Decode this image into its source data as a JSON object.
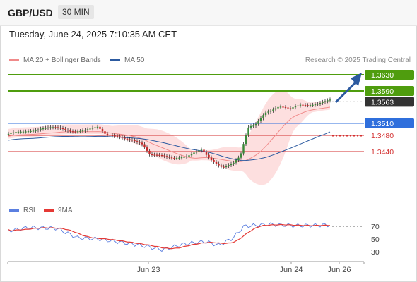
{
  "header": {
    "symbol": "GBP/USD",
    "interval": "30 MIN"
  },
  "timestamp": "Tuesday, June 24, 2025 7:10:35 AM CET",
  "legend": {
    "ma20_label": "MA 20 + Bollinger Bands",
    "ma20_color": "#f08a8a",
    "ma50_label": "MA 50",
    "ma50_color": "#2c5aa0"
  },
  "credit": "Research © 2025 Trading Central",
  "levels": [
    {
      "value": 1.363,
      "label": "1.3630",
      "kind": "resistance",
      "color": "#4f9d0e"
    },
    {
      "value": 1.359,
      "label": "1.3590",
      "kind": "resistance",
      "color": "#4f9d0e"
    },
    {
      "value": 1.3563,
      "label": "1.3563",
      "kind": "last",
      "color": "#333333"
    },
    {
      "value": 1.351,
      "label": "1.3510",
      "kind": "pivot",
      "color": "#2f6fdc"
    },
    {
      "value": 1.348,
      "label": "1.3480",
      "kind": "support",
      "color": "#d32f2f"
    },
    {
      "value": 1.344,
      "label": "1.3440",
      "kind": "support",
      "color": "#d32f2f"
    }
  ],
  "rsi": {
    "rsi_label": "RSI",
    "rsi_color": "#5b7fe0",
    "ma_label": "9MA",
    "ma_color": "#e53935",
    "levels": [
      "70",
      "50",
      "30"
    ]
  },
  "xaxis": {
    "labels": [
      "Jun 23",
      "Jun 24",
      "Jun 26"
    ]
  },
  "colors": {
    "up": "#3a8a3a",
    "down": "#c62828",
    "band_fill": "#fdd9d9",
    "arrow": "#2c5aa0"
  }
}
